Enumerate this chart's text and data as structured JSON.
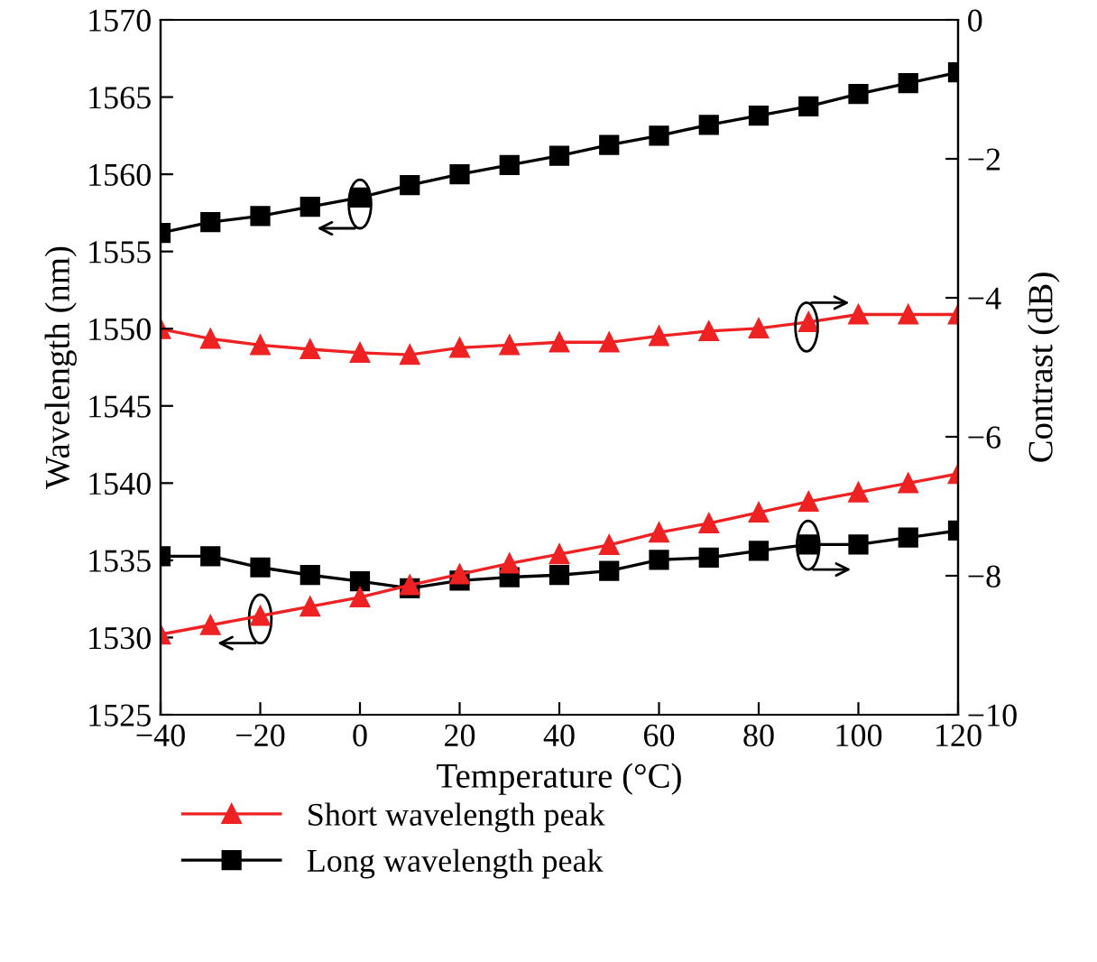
{
  "chart_data": {
    "type": "line",
    "xlabel": "Temperature (°C)",
    "ylabel": "Wavelength (nm)",
    "y2label": "Contrast (dB)",
    "x": [
      -40,
      -30,
      -20,
      -10,
      0,
      10,
      20,
      30,
      40,
      50,
      60,
      70,
      80,
      90,
      100,
      110,
      120
    ],
    "series": [
      {
        "name": "Short wavelength peak",
        "color": "#ee2222",
        "marker": "triangle",
        "values": [
          1530.2,
          1530.8,
          1531.4,
          1532.0,
          1532.6,
          1533.4,
          1534.1,
          1534.8,
          1535.4,
          1536.0,
          1536.8,
          1537.4,
          1538.1,
          1538.8,
          1539.4,
          1540.0,
          1540.6
        ]
      },
      {
        "name": "Long wavelength peak",
        "color": "#000000",
        "marker": "square",
        "values": [
          1556.2,
          1556.9,
          1557.3,
          1557.9,
          1558.5,
          1559.3,
          1560.0,
          1560.6,
          1561.2,
          1561.9,
          1562.5,
          1563.2,
          1563.8,
          1564.4,
          1565.2,
          1565.9,
          1566.6
        ]
      },
      {
        "color": "#ee2222",
        "marker": "triangle",
        "axis": "y2",
        "values": [
          -4.45,
          -4.59,
          -4.68,
          -4.74,
          -4.79,
          -4.82,
          -4.72,
          -4.68,
          -4.64,
          -4.64,
          -4.55,
          -4.48,
          -4.44,
          -4.35,
          -4.24,
          -4.24,
          -4.24
        ]
      },
      {
        "color": "#000000",
        "marker": "square",
        "axis": "y2",
        "values": [
          -7.72,
          -7.72,
          -7.88,
          -7.99,
          -8.08,
          -8.18,
          -8.07,
          -8.02,
          -7.99,
          -7.93,
          -7.77,
          -7.74,
          -7.64,
          -7.55,
          -7.55,
          -7.45,
          -7.35
        ]
      }
    ],
    "xlim": [
      -40,
      120
    ],
    "xticks": [
      {
        "value": -40,
        "label": "−40"
      },
      {
        "value": -20,
        "label": "−20"
      },
      0,
      20,
      40,
      60,
      80,
      100,
      120
    ],
    "ylim": [
      1525,
      1570
    ],
    "yticks": [
      1525,
      1530,
      1535,
      1540,
      1545,
      1550,
      1555,
      1560,
      1565,
      1570
    ],
    "y2lim": [
      -10,
      0
    ],
    "y2ticks": [
      {
        "value": -10,
        "label": "−10"
      },
      {
        "value": -8,
        "label": "−8"
      },
      {
        "value": -6,
        "label": "−6"
      },
      {
        "value": -4,
        "label": "−4"
      },
      {
        "value": -2,
        "label": "−2"
      },
      0
    ],
    "grid": false,
    "legend": "bottom left",
    "line_style": "solid"
  }
}
